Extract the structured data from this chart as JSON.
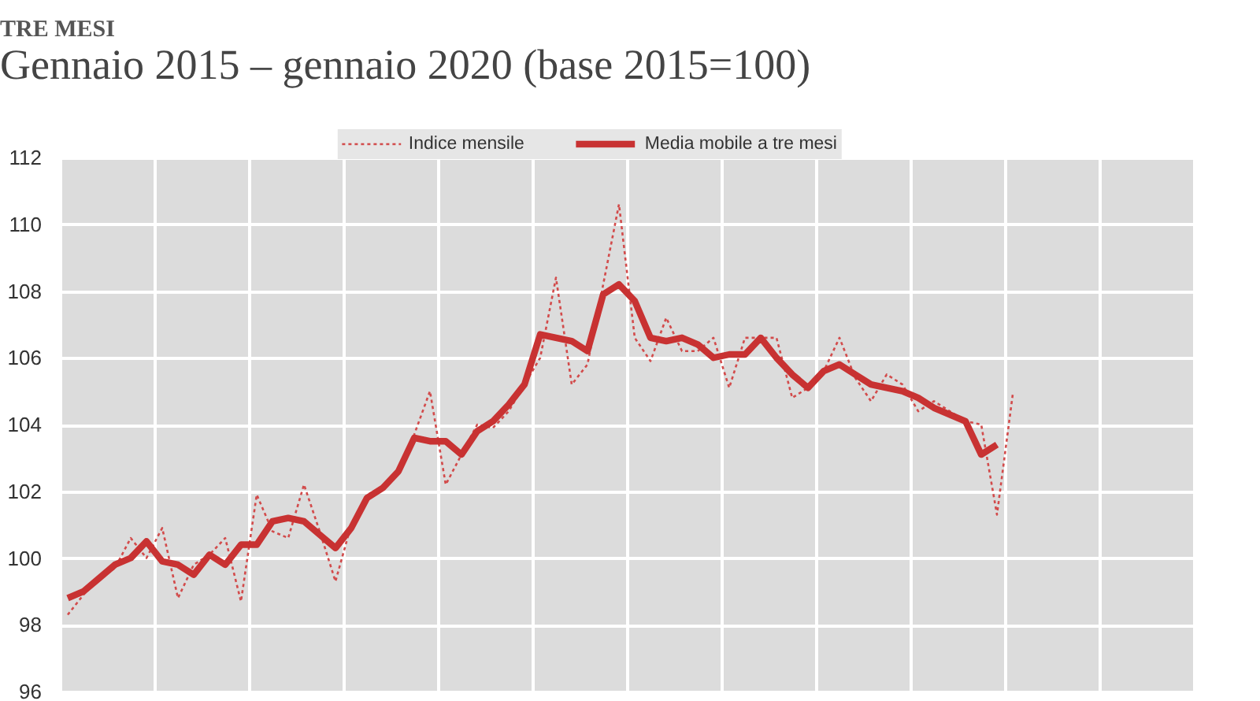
{
  "chart_data": {
    "type": "line",
    "title": "TRE MESI",
    "subtitle": "Gennaio 2015 – gennaio 2020 (base 2015=100)",
    "categories": [
      null,
      null,
      null,
      null,
      null,
      null,
      null,
      null,
      null,
      null,
      null,
      null,
      null,
      null,
      null,
      null,
      null,
      null,
      null,
      null,
      null,
      null,
      null,
      null,
      null,
      null,
      null,
      null,
      null,
      null,
      null,
      null,
      null,
      null,
      null,
      null,
      null,
      null,
      null,
      null,
      null,
      null,
      null,
      null,
      null,
      null,
      null,
      null,
      null,
      null,
      null,
      null,
      null,
      null,
      null,
      null,
      null,
      null,
      null,
      null,
      null,
      null,
      null,
      null,
      null,
      null,
      null,
      null,
      null,
      null,
      null,
      null
    ],
    "series": [
      {
        "name": "Indice mensile",
        "color": "#d24b4b",
        "line_style": "dotted",
        "values": [
          98.3,
          98.9,
          99.4,
          99.7,
          100.6,
          100.0,
          100.9,
          98.8,
          99.8,
          100.1,
          100.6,
          98.7,
          101.9,
          100.8,
          100.6,
          102.2,
          100.8,
          99.3,
          101.0,
          101.9,
          102.1,
          102.6,
          103.7,
          105.0,
          102.2,
          103.1,
          104.0,
          103.9,
          104.4,
          105.2,
          106.0,
          108.4,
          105.2,
          105.8,
          108.2,
          110.6,
          106.6,
          105.9,
          107.2,
          106.2,
          106.2,
          106.6,
          105.1,
          106.6,
          106.6,
          106.6,
          104.8,
          105.1,
          105.6,
          106.6,
          105.4,
          104.7,
          105.5,
          105.2,
          104.4,
          104.7,
          104.4,
          104.1,
          104.0,
          101.3,
          104.9,
          null,
          null,
          null,
          null,
          null,
          null,
          null,
          null,
          null,
          null,
          null
        ]
      },
      {
        "name": "Media mobile a tre mesi",
        "color": "#c83232",
        "line_style": "solid",
        "values": [
          98.8,
          99.0,
          99.4,
          99.8,
          100.0,
          100.5,
          99.9,
          99.8,
          99.5,
          100.1,
          99.8,
          100.4,
          100.4,
          101.1,
          101.2,
          101.1,
          100.7,
          100.3,
          100.9,
          101.8,
          102.1,
          102.6,
          103.6,
          103.5,
          103.5,
          103.1,
          103.8,
          104.1,
          104.6,
          105.2,
          106.7,
          106.6,
          106.5,
          106.2,
          107.9,
          108.2,
          107.7,
          106.6,
          106.5,
          106.6,
          106.4,
          106.0,
          106.1,
          106.1,
          106.6,
          106.0,
          105.5,
          105.1,
          105.6,
          105.8,
          105.5,
          105.2,
          105.1,
          105.0,
          104.8,
          104.5,
          104.3,
          104.1,
          103.1,
          103.4,
          null,
          null,
          null,
          null,
          null,
          null,
          null,
          null,
          null,
          null,
          null,
          null
        ]
      }
    ],
    "ylim": [
      96,
      112
    ],
    "yticks": [
      96,
      98,
      100,
      102,
      104,
      106,
      108,
      110,
      112
    ],
    "grid": true,
    "legend": "top",
    "tick_labels": "y"
  }
}
